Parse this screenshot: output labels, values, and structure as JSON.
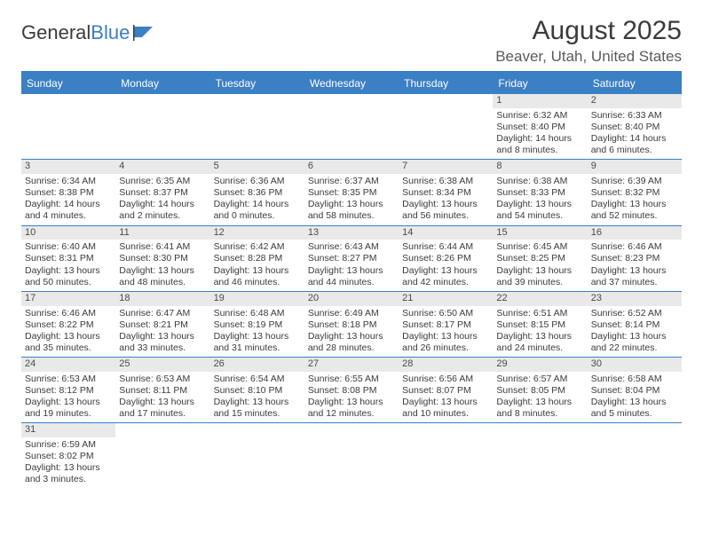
{
  "logo": {
    "text1": "General",
    "text2": "Blue"
  },
  "title": "August 2025",
  "location": "Beaver, Utah, United States",
  "accent_color": "#3b7fc4",
  "daynum_bg": "#e9e9e9",
  "text_color": "#3b3b3b",
  "dow": [
    "Sunday",
    "Monday",
    "Tuesday",
    "Wednesday",
    "Thursday",
    "Friday",
    "Saturday"
  ],
  "weeks": [
    [
      null,
      null,
      null,
      null,
      null,
      {
        "n": "1",
        "sr": "6:32 AM",
        "ss": "8:40 PM",
        "dl": "14 hours and 8 minutes."
      },
      {
        "n": "2",
        "sr": "6:33 AM",
        "ss": "8:40 PM",
        "dl": "14 hours and 6 minutes."
      }
    ],
    [
      {
        "n": "3",
        "sr": "6:34 AM",
        "ss": "8:38 PM",
        "dl": "14 hours and 4 minutes."
      },
      {
        "n": "4",
        "sr": "6:35 AM",
        "ss": "8:37 PM",
        "dl": "14 hours and 2 minutes."
      },
      {
        "n": "5",
        "sr": "6:36 AM",
        "ss": "8:36 PM",
        "dl": "14 hours and 0 minutes."
      },
      {
        "n": "6",
        "sr": "6:37 AM",
        "ss": "8:35 PM",
        "dl": "13 hours and 58 minutes."
      },
      {
        "n": "7",
        "sr": "6:38 AM",
        "ss": "8:34 PM",
        "dl": "13 hours and 56 minutes."
      },
      {
        "n": "8",
        "sr": "6:38 AM",
        "ss": "8:33 PM",
        "dl": "13 hours and 54 minutes."
      },
      {
        "n": "9",
        "sr": "6:39 AM",
        "ss": "8:32 PM",
        "dl": "13 hours and 52 minutes."
      }
    ],
    [
      {
        "n": "10",
        "sr": "6:40 AM",
        "ss": "8:31 PM",
        "dl": "13 hours and 50 minutes."
      },
      {
        "n": "11",
        "sr": "6:41 AM",
        "ss": "8:30 PM",
        "dl": "13 hours and 48 minutes."
      },
      {
        "n": "12",
        "sr": "6:42 AM",
        "ss": "8:28 PM",
        "dl": "13 hours and 46 minutes."
      },
      {
        "n": "13",
        "sr": "6:43 AM",
        "ss": "8:27 PM",
        "dl": "13 hours and 44 minutes."
      },
      {
        "n": "14",
        "sr": "6:44 AM",
        "ss": "8:26 PM",
        "dl": "13 hours and 42 minutes."
      },
      {
        "n": "15",
        "sr": "6:45 AM",
        "ss": "8:25 PM",
        "dl": "13 hours and 39 minutes."
      },
      {
        "n": "16",
        "sr": "6:46 AM",
        "ss": "8:23 PM",
        "dl": "13 hours and 37 minutes."
      }
    ],
    [
      {
        "n": "17",
        "sr": "6:46 AM",
        "ss": "8:22 PM",
        "dl": "13 hours and 35 minutes."
      },
      {
        "n": "18",
        "sr": "6:47 AM",
        "ss": "8:21 PM",
        "dl": "13 hours and 33 minutes."
      },
      {
        "n": "19",
        "sr": "6:48 AM",
        "ss": "8:19 PM",
        "dl": "13 hours and 31 minutes."
      },
      {
        "n": "20",
        "sr": "6:49 AM",
        "ss": "8:18 PM",
        "dl": "13 hours and 28 minutes."
      },
      {
        "n": "21",
        "sr": "6:50 AM",
        "ss": "8:17 PM",
        "dl": "13 hours and 26 minutes."
      },
      {
        "n": "22",
        "sr": "6:51 AM",
        "ss": "8:15 PM",
        "dl": "13 hours and 24 minutes."
      },
      {
        "n": "23",
        "sr": "6:52 AM",
        "ss": "8:14 PM",
        "dl": "13 hours and 22 minutes."
      }
    ],
    [
      {
        "n": "24",
        "sr": "6:53 AM",
        "ss": "8:12 PM",
        "dl": "13 hours and 19 minutes."
      },
      {
        "n": "25",
        "sr": "6:53 AM",
        "ss": "8:11 PM",
        "dl": "13 hours and 17 minutes."
      },
      {
        "n": "26",
        "sr": "6:54 AM",
        "ss": "8:10 PM",
        "dl": "13 hours and 15 minutes."
      },
      {
        "n": "27",
        "sr": "6:55 AM",
        "ss": "8:08 PM",
        "dl": "13 hours and 12 minutes."
      },
      {
        "n": "28",
        "sr": "6:56 AM",
        "ss": "8:07 PM",
        "dl": "13 hours and 10 minutes."
      },
      {
        "n": "29",
        "sr": "6:57 AM",
        "ss": "8:05 PM",
        "dl": "13 hours and 8 minutes."
      },
      {
        "n": "30",
        "sr": "6:58 AM",
        "ss": "8:04 PM",
        "dl": "13 hours and 5 minutes."
      }
    ],
    [
      {
        "n": "31",
        "sr": "6:59 AM",
        "ss": "8:02 PM",
        "dl": "13 hours and 3 minutes."
      },
      null,
      null,
      null,
      null,
      null,
      null
    ]
  ],
  "labels": {
    "sunrise": "Sunrise:",
    "sunset": "Sunset:",
    "daylight": "Daylight:"
  }
}
